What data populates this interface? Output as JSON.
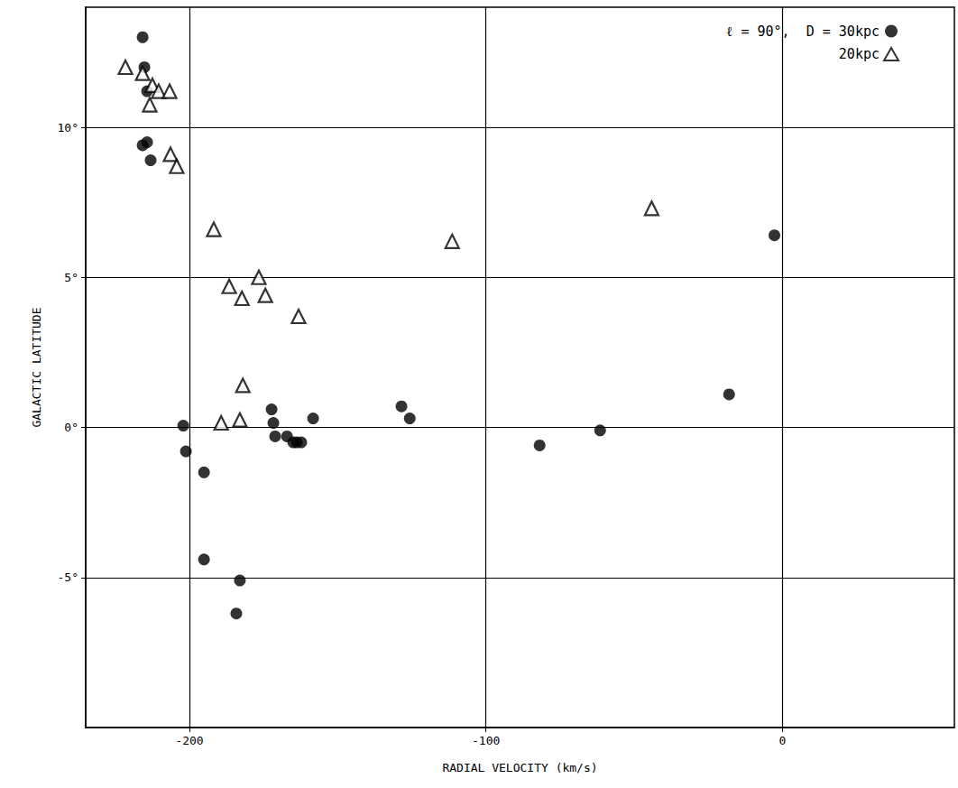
{
  "chart_data": {
    "type": "scatter",
    "x_label": "RADIAL VELOCITY (km/s)",
    "y_label": "GALACTIC LATITUDE",
    "xlim": [
      -235,
      58
    ],
    "xticks": [
      -200,
      -100,
      0
    ],
    "ylim": [
      -10,
      14
    ],
    "yticks": [
      {
        "value": -5,
        "label": "-5°"
      },
      {
        "value": 0,
        "label": "0°"
      },
      {
        "value": 5,
        "label": "5°"
      },
      {
        "value": 10,
        "label": "10°"
      }
    ],
    "grid": true,
    "legend": "top-right",
    "series": [
      {
        "name": "ℓ = 90°,  D = 30kpc",
        "color": "#000000",
        "marker": "circle",
        "x": [
          -215.8,
          -215.2,
          -214.3,
          -215.8,
          -214.3,
          -213.1,
          -202.1,
          -201.2,
          -195.1,
          -195.1,
          -183.0,
          -184.2,
          -172.3,
          -171.7,
          -171.1,
          -167.1,
          -165.0,
          -163.8,
          -162.3,
          -158.3,
          -128.5,
          -125.7,
          -81.9,
          -61.5,
          -18.0,
          -2.7
        ],
        "values": [
          13.0,
          12.0,
          11.2,
          9.4,
          9.5,
          8.9,
          0.06,
          -0.8,
          -1.5,
          -4.4,
          -5.1,
          -6.2,
          0.6,
          0.15,
          -0.3,
          -0.3,
          -0.5,
          -0.5,
          -0.5,
          0.3,
          0.7,
          0.3,
          -0.6,
          -0.1,
          1.1,
          6.4
        ]
      },
      {
        "name": "20kpc",
        "color": "#000000",
        "marker": "triangle_open",
        "x": [
          -221.6,
          -215.8,
          -212.5,
          -210.4,
          -213.4,
          -206.7,
          -206.4,
          -204.3,
          -191.8,
          -186.6,
          -182.3,
          -176.6,
          -174.4,
          -163.2,
          -182.0,
          -189.3,
          -183.0,
          -111.4,
          -44.1
        ],
        "values": [
          12.0,
          11.8,
          11.4,
          11.2,
          10.75,
          11.2,
          9.1,
          8.7,
          6.6,
          4.7,
          4.3,
          5.0,
          4.4,
          3.7,
          1.4,
          0.15,
          0.25,
          6.2,
          7.3
        ]
      }
    ]
  }
}
